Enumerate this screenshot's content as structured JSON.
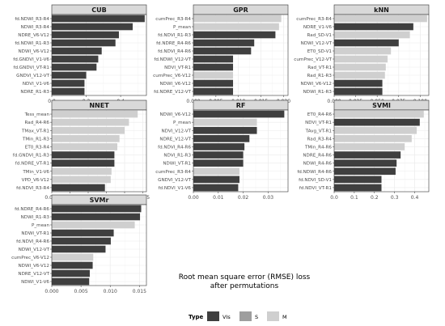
{
  "colors": {
    "VIs": "#3f3f3f",
    "S": "#9e9e9e",
    "M": "#cfcfcf",
    "strip": "#d9d9d9",
    "grid": "#ebebeb",
    "border": "#333333"
  },
  "axis_title": "Root mean square error (RMSE) loss after permutations",
  "axis_title_lines": [
    "Root mean square error (RMSE) loss",
    "after permutations"
  ],
  "legend": {
    "title": "Type",
    "items": [
      {
        "key": "VIs",
        "label": "VIs"
      },
      {
        "key": "S",
        "label": "S"
      },
      {
        "key": "M",
        "label": "M"
      }
    ]
  },
  "chart_data": [
    {
      "type": "bar",
      "title": "CUB",
      "xlim": [
        0,
        0.55
      ],
      "ticks": [
        0.0,
        0.2,
        0.4
      ],
      "tick_labels": [
        "0.0",
        "0.2",
        "0.4"
      ],
      "bars": [
        {
          "label": "fd.NDWI_R3-R4",
          "value": 0.54,
          "group": "VIs"
        },
        {
          "label": "NDWI_R3-R4",
          "value": 0.47,
          "group": "VIs"
        },
        {
          "label": "NDRE_V6-V12",
          "value": 0.39,
          "group": "VIs"
        },
        {
          "label": "fd.NDWI_R1-R3",
          "value": 0.37,
          "group": "VIs"
        },
        {
          "label": "NDWI_V6-V12",
          "value": 0.29,
          "group": "VIs"
        },
        {
          "label": "fd.GNDVI_V1-V6",
          "value": 0.27,
          "group": "VIs"
        },
        {
          "label": "fd.GNDVI_VT-R1",
          "value": 0.26,
          "group": "VIs"
        },
        {
          "label": "GNDVI_V12-VT",
          "value": 0.2,
          "group": "VIs"
        },
        {
          "label": "NDVI_V1-V6",
          "value": 0.19,
          "group": "VIs"
        },
        {
          "label": "NDRE_R1-R3",
          "value": 0.19,
          "group": "VIs"
        }
      ]
    },
    {
      "type": "bar",
      "title": "GPR",
      "xlim": [
        0,
        0.021
      ],
      "ticks": [
        0.0,
        0.005,
        0.01,
        0.015,
        0.02
      ],
      "tick_labels": [
        "0.000",
        "0.005",
        "0.010",
        "0.015",
        "0.020"
      ],
      "bars": [
        {
          "label": "cumPrec_R3-R4",
          "value": 0.0195,
          "group": "M"
        },
        {
          "label": "P_mean",
          "value": 0.019,
          "group": "M"
        },
        {
          "label": "fd.NDVI_R1-R3",
          "value": 0.0182,
          "group": "VIs"
        },
        {
          "label": "fd.NDRE_R4-R6",
          "value": 0.0135,
          "group": "VIs"
        },
        {
          "label": "fd.NDVI_R4-R6",
          "value": 0.0128,
          "group": "VIs"
        },
        {
          "label": "fd.NDWI_V12-VT",
          "value": 0.0088,
          "group": "VIs"
        },
        {
          "label": "NDVI_VT-R1",
          "value": 0.0088,
          "group": "VIs"
        },
        {
          "label": "cumPrec_V6-V12",
          "value": 0.0088,
          "group": "M"
        },
        {
          "label": "NDWI_V6-V12",
          "value": 0.0088,
          "group": "VIs"
        },
        {
          "label": "fd.NDRE_V12-VT",
          "value": 0.0088,
          "group": "VIs"
        }
      ]
    },
    {
      "type": "bar",
      "title": "kNN",
      "xlim": [
        0,
        0.11
      ],
      "ticks": [
        0.0,
        0.025,
        0.05,
        0.075,
        0.1
      ],
      "tick_labels": [
        "0.000",
        "0.025",
        "0.050",
        "0.075",
        "0.100"
      ],
      "bars": [
        {
          "label": "cumPrec_R3-R4",
          "value": 0.108,
          "group": "M"
        },
        {
          "label": "NDRE_V1-V6",
          "value": 0.092,
          "group": "VIs"
        },
        {
          "label": "Rad_SD-V1",
          "value": 0.088,
          "group": "M"
        },
        {
          "label": "NDWI_V12-VT",
          "value": 0.075,
          "group": "VIs"
        },
        {
          "label": "ET0_SD-V1",
          "value": 0.066,
          "group": "M"
        },
        {
          "label": "cumPrec_V12-VT",
          "value": 0.062,
          "group": "M"
        },
        {
          "label": "Rad_VT-R1",
          "value": 0.06,
          "group": "M"
        },
        {
          "label": "Rad_R1-R3",
          "value": 0.059,
          "group": "M"
        },
        {
          "label": "NDWI_V6-V12",
          "value": 0.056,
          "group": "VIs"
        },
        {
          "label": "NDWI_R1-R3",
          "value": 0.056,
          "group": "VIs"
        }
      ]
    },
    {
      "type": "bar",
      "title": "NNET",
      "xlim": [
        0,
        0.13
      ],
      "ticks": [
        0.0,
        0.025,
        0.05,
        0.075,
        0.1,
        0.125
      ],
      "tick_labels": [
        "0.000",
        "0.025",
        "0.050",
        "0.075",
        "0.100",
        "0.125"
      ],
      "bars": [
        {
          "label": "Tess_mean",
          "value": 0.118,
          "group": "M"
        },
        {
          "label": "Rad_R4-R6",
          "value": 0.106,
          "group": "M"
        },
        {
          "label": "TMax_VT-R1",
          "value": 0.1,
          "group": "M"
        },
        {
          "label": "TMin_R1-R3",
          "value": 0.093,
          "group": "M"
        },
        {
          "label": "ET0_R3-R4",
          "value": 0.09,
          "group": "M"
        },
        {
          "label": "fd.GNDVI_R1-R3",
          "value": 0.086,
          "group": "VIs"
        },
        {
          "label": "fd.NDRE_VT-R1",
          "value": 0.086,
          "group": "VIs"
        },
        {
          "label": "TMin_V1-V6",
          "value": 0.082,
          "group": "M"
        },
        {
          "label": "VPD_V6-V12",
          "value": 0.081,
          "group": "M"
        },
        {
          "label": "fd.NDVI_R3-R4",
          "value": 0.073,
          "group": "VIs"
        }
      ]
    },
    {
      "type": "bar",
      "title": "RF",
      "xlim": [
        0,
        0.038
      ],
      "ticks": [
        0.0,
        0.01,
        0.02,
        0.03
      ],
      "tick_labels": [
        "0.00",
        "0.01",
        "0.02",
        "0.03"
      ],
      "bars": [
        {
          "label": "NDWI_V6-V12",
          "value": 0.0365,
          "group": "VIs"
        },
        {
          "label": "P_mean",
          "value": 0.0255,
          "group": "M"
        },
        {
          "label": "NDVI_V12-VT",
          "value": 0.0255,
          "group": "VIs"
        },
        {
          "label": "NDRE_V12-VT",
          "value": 0.0225,
          "group": "VIs"
        },
        {
          "label": "fd.NDVI_R4-R6",
          "value": 0.0205,
          "group": "VIs"
        },
        {
          "label": "NDVI_R1-R3",
          "value": 0.02,
          "group": "VIs"
        },
        {
          "label": "NDWI_VT-R1",
          "value": 0.02,
          "group": "VIs"
        },
        {
          "label": "cumPrec_R3-R4",
          "value": 0.0185,
          "group": "M"
        },
        {
          "label": "GNDVI_V12-VT",
          "value": 0.0185,
          "group": "VIs"
        },
        {
          "label": "fd.NDVI_V1-V6",
          "value": 0.018,
          "group": "VIs"
        }
      ]
    },
    {
      "type": "bar",
      "title": "SVMl",
      "xlim": [
        0,
        0.47
      ],
      "ticks": [
        0.0,
        0.1,
        0.2,
        0.3,
        0.4
      ],
      "tick_labels": [
        "0.0",
        "0.1",
        "0.2",
        "0.3",
        "0.4"
      ],
      "bars": [
        {
          "label": "ET0_R4-R6",
          "value": 0.445,
          "group": "M"
        },
        {
          "label": "NDVI_VT-R1",
          "value": 0.425,
          "group": "VIs"
        },
        {
          "label": "TAvg_VT-R1",
          "value": 0.41,
          "group": "M"
        },
        {
          "label": "Rad_R3-R4",
          "value": 0.385,
          "group": "M"
        },
        {
          "label": "TMin_R4-R6",
          "value": 0.35,
          "group": "M"
        },
        {
          "label": "NDRE_R4-R6",
          "value": 0.33,
          "group": "VIs"
        },
        {
          "label": "NDWI_R4-R6",
          "value": 0.31,
          "group": "VIs"
        },
        {
          "label": "fd.NDWI_R4-R6",
          "value": 0.305,
          "group": "VIs"
        },
        {
          "label": "fd.NDVI_SD-V1",
          "value": 0.235,
          "group": "VIs"
        },
        {
          "label": "fd.NDVI_VT-R1",
          "value": 0.235,
          "group": "VIs"
        }
      ]
    },
    {
      "type": "bar",
      "title": "SVMr",
      "xlim": [
        0,
        0.0162
      ],
      "ticks": [
        0.0,
        0.005,
        0.01,
        0.015
      ],
      "tick_labels": [
        "0.000",
        "0.005",
        "0.010",
        "0.015"
      ],
      "bars": [
        {
          "label": "fd.NDRE_R4-R6",
          "value": 0.0153,
          "group": "VIs"
        },
        {
          "label": "NDWI_R1-R3",
          "value": 0.0151,
          "group": "VIs"
        },
        {
          "label": "P_mean",
          "value": 0.0142,
          "group": "M"
        },
        {
          "label": "NDWI_VT-R1",
          "value": 0.0106,
          "group": "VIs"
        },
        {
          "label": "fd.NDVI_R4-R6",
          "value": 0.0101,
          "group": "VIs"
        },
        {
          "label": "NDWI_V12-VT",
          "value": 0.0092,
          "group": "VIs"
        },
        {
          "label": "cumPrec_V6-V12",
          "value": 0.0071,
          "group": "M"
        },
        {
          "label": "NDWI_V6-V12",
          "value": 0.007,
          "group": "VIs"
        },
        {
          "label": "NDRE_V12-VT",
          "value": 0.0065,
          "group": "VIs"
        },
        {
          "label": "NDWI_V1-V6",
          "value": 0.0064,
          "group": "VIs"
        }
      ]
    }
  ]
}
